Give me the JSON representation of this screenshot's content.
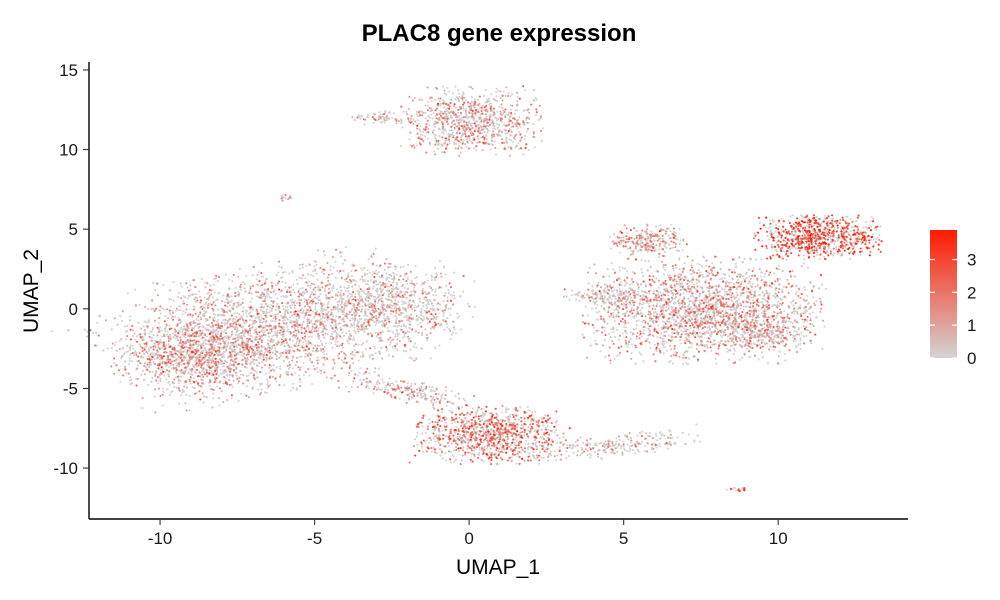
{
  "chart_data": {
    "type": "scatter",
    "title": "PLAC8 gene expression",
    "xlabel": "UMAP_1",
    "ylabel": "UMAP_2",
    "xlim": [
      -12.3,
      14.2
    ],
    "ylim": [
      -13.2,
      15.5
    ],
    "x_ticks": [
      -10,
      -5,
      0,
      5,
      10
    ],
    "y_ticks": [
      15,
      10,
      5,
      0,
      -5,
      -10
    ],
    "x_tick_labels": [
      "-10",
      "-5",
      "0",
      "5",
      "10"
    ],
    "y_tick_labels": [
      "15",
      "10",
      "5",
      "0",
      "-5",
      "-10"
    ],
    "grid": false,
    "legend": {
      "position": "right",
      "min": 0,
      "max": 3.9,
      "ticks": [
        0,
        1,
        2,
        3
      ],
      "tick_labels": [
        "0",
        "1",
        "2",
        "3"
      ],
      "low_color": "#d3d3d3",
      "high_color": "#ff1a00"
    },
    "point_colors": {
      "low": "#d3d3d3",
      "high": "#ff1a00"
    },
    "clusters": [
      {
        "name": "left-large",
        "cx": -6.5,
        "cy": -1.2,
        "sx": 2.6,
        "sy": 1.8,
        "n": 2600,
        "expr": 0.9,
        "dir": [
          0.9,
          0.38
        ]
      },
      {
        "name": "left-lobe",
        "cx": -8.8,
        "cy": -3.0,
        "sx": 1.1,
        "sy": 1.0,
        "n": 800,
        "expr": 1.4,
        "dir": [
          1,
          0
        ]
      },
      {
        "name": "left-right-arm",
        "cx": -2.6,
        "cy": 0.3,
        "sx": 1.3,
        "sy": 1.3,
        "n": 700,
        "expr": 0.5,
        "dir": [
          1,
          0
        ]
      },
      {
        "name": "top-cluster",
        "cx": 0.1,
        "cy": 11.8,
        "sx": 1.05,
        "sy": 1.0,
        "n": 900,
        "expr": 1.1,
        "dir": [
          1,
          0
        ]
      },
      {
        "name": "top-left-small",
        "cx": -2.9,
        "cy": 12.0,
        "sx": 0.4,
        "sy": 0.2,
        "n": 60,
        "expr": 0.6,
        "dir": [
          1,
          0
        ]
      },
      {
        "name": "lower-middle",
        "cx": 0.6,
        "cy": -7.9,
        "sx": 1.15,
        "sy": 0.85,
        "n": 1000,
        "expr": 1.9,
        "dir": [
          1,
          0
        ]
      },
      {
        "name": "lower-arm-left",
        "cx": -2.0,
        "cy": -5.2,
        "sx": 1.1,
        "sy": 0.35,
        "n": 220,
        "expr": 0.8,
        "dir": [
          0.9,
          -0.4
        ]
      },
      {
        "name": "lower-arm-right",
        "cx": 4.6,
        "cy": -8.6,
        "sx": 1.4,
        "sy": 0.35,
        "n": 260,
        "expr": 0.5,
        "dir": [
          0.95,
          0.2
        ]
      },
      {
        "name": "right-main",
        "cx": 7.6,
        "cy": -0.1,
        "sx": 1.8,
        "sy": 1.55,
        "n": 2200,
        "expr": 1.2,
        "dir": [
          1,
          0
        ]
      },
      {
        "name": "right-upper-left",
        "cx": 5.8,
        "cy": 4.3,
        "sx": 0.6,
        "sy": 0.45,
        "n": 250,
        "expr": 1.3,
        "dir": [
          1,
          0
        ]
      },
      {
        "name": "right-top-band",
        "cx": 11.3,
        "cy": 4.5,
        "sx": 0.95,
        "sy": 0.65,
        "n": 800,
        "expr": 2.7,
        "dir": [
          1,
          0
        ]
      },
      {
        "name": "right-lower-arm",
        "cx": 9.5,
        "cy": -1.5,
        "sx": 0.75,
        "sy": 0.5,
        "n": 250,
        "expr": 0.6,
        "dir": [
          1,
          0
        ]
      },
      {
        "name": "right-left-arm",
        "cx": 4.6,
        "cy": 0.8,
        "sx": 0.7,
        "sy": 0.28,
        "n": 160,
        "expr": 0.4,
        "dir": [
          1,
          0
        ]
      },
      {
        "name": "tiny-upper-left",
        "cx": -5.9,
        "cy": 7.0,
        "sx": 0.12,
        "sy": 0.15,
        "n": 12,
        "expr": 0.2,
        "dir": [
          1,
          0
        ]
      },
      {
        "name": "tiny-bottom-right",
        "cx": 8.7,
        "cy": -11.3,
        "sx": 0.2,
        "sy": 0.08,
        "n": 18,
        "expr": 3.0,
        "dir": [
          1,
          0
        ]
      }
    ]
  }
}
